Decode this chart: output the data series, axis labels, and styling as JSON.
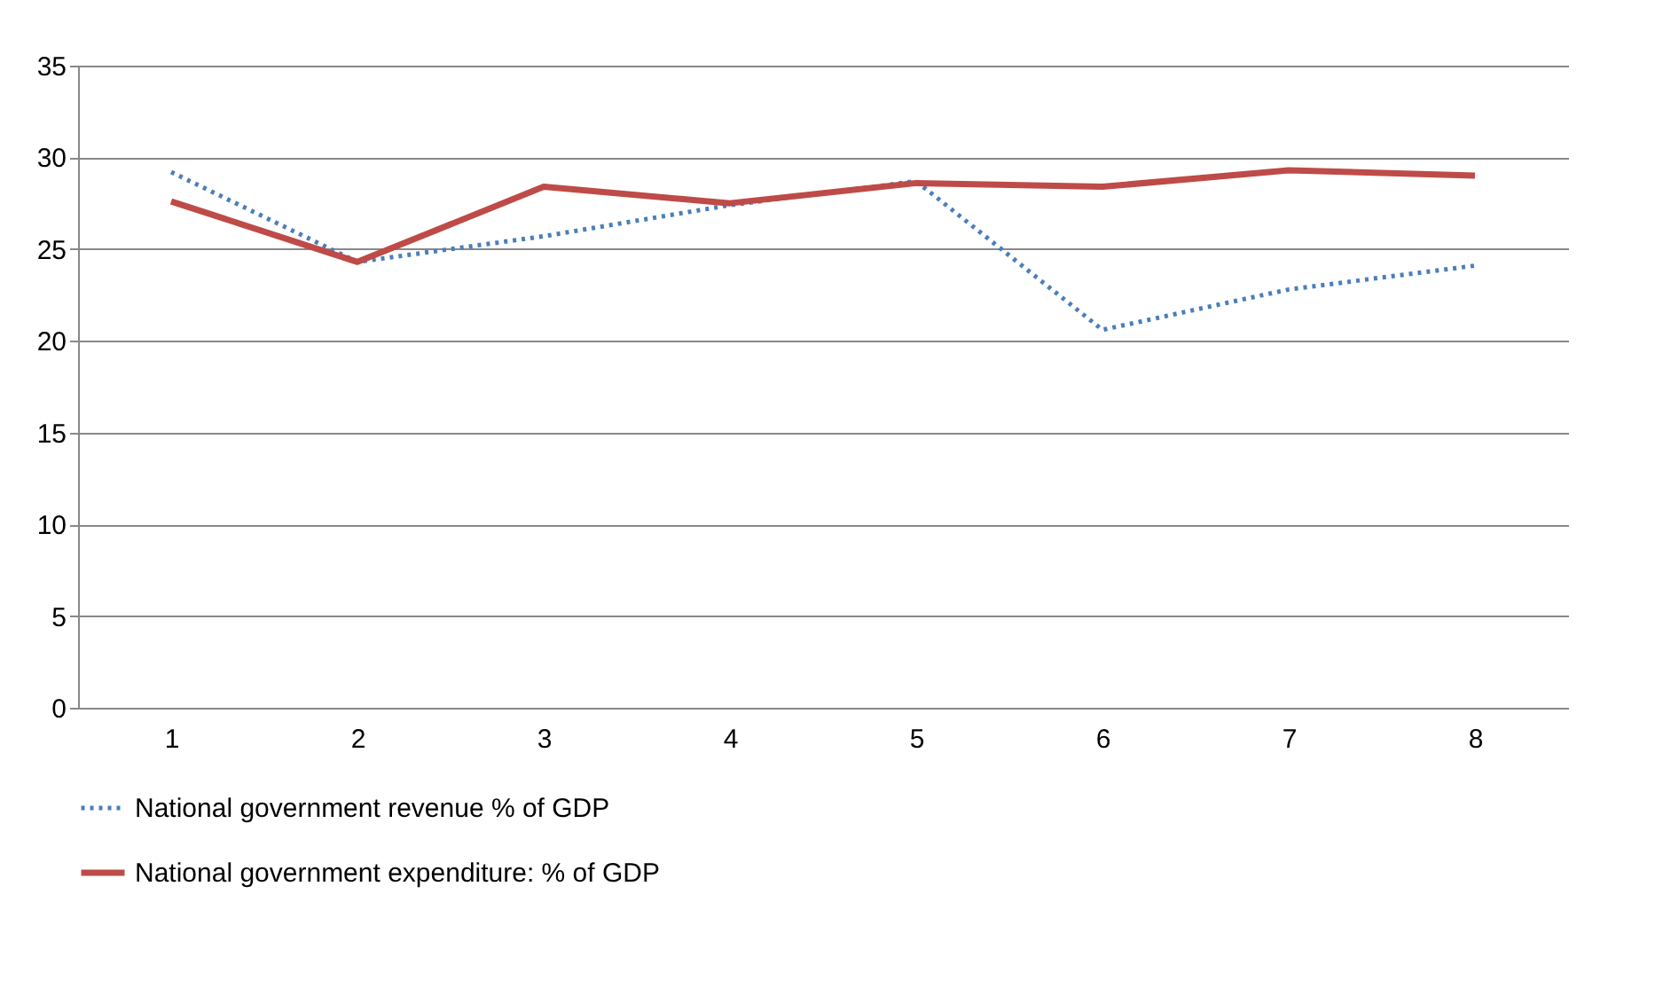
{
  "chart_data": {
    "type": "line",
    "categories": [
      "1",
      "2",
      "3",
      "4",
      "5",
      "6",
      "7",
      "8"
    ],
    "series": [
      {
        "name": "National government revenue % of GDP",
        "color": "#4a7ebb",
        "line_style": "dotted",
        "values": [
          29.2,
          24.3,
          25.7,
          27.4,
          28.7,
          20.6,
          22.8,
          24.1
        ]
      },
      {
        "name": "National government expenditure: % of GDP",
        "color": "#be4b48",
        "line_style": "solid",
        "values": [
          27.6,
          24.3,
          28.4,
          27.5,
          28.6,
          28.4,
          29.3,
          29.0
        ]
      }
    ],
    "ylim": [
      0,
      35
    ],
    "yticks": [
      0,
      5,
      10,
      15,
      20,
      25,
      30,
      35
    ],
    "grid": "y",
    "legend": "bottom",
    "marker": "none"
  }
}
